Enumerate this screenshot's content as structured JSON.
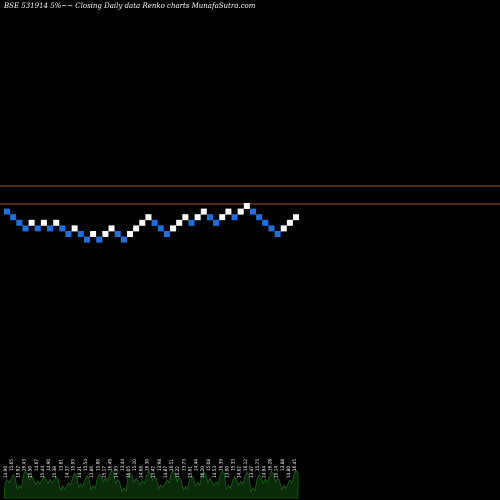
{
  "chart_data": {
    "type": "renko",
    "title": "BSE 531914  5%~~  Closing Daily data  Renko  charts MunafaSutra.com",
    "colors": {
      "background": "#000000",
      "up_brick": "#ffffff",
      "down_brick": "#1e6fe0",
      "reference_lines": "#a0522d",
      "volume_fill": "#0a2a0a",
      "volume_stroke": "#1a7a1a"
    },
    "brick_direction_sequence": [
      "down",
      "down",
      "down",
      "down",
      "up",
      "down",
      "up",
      "down",
      "up",
      "down",
      "down",
      "up",
      "down",
      "down",
      "up",
      "down",
      "up",
      "up",
      "down",
      "down",
      "up",
      "up",
      "up",
      "up",
      "down",
      "down",
      "down",
      "up",
      "up",
      "up",
      "down",
      "up",
      "up",
      "down",
      "down",
      "up",
      "up",
      "down",
      "up",
      "up",
      "down",
      "down",
      "down",
      "down",
      "down",
      "up",
      "up",
      "up"
    ],
    "reference_lines": [
      {
        "name": "upper",
        "value_rank": "high"
      },
      {
        "name": "lower",
        "value_rank": "low"
      }
    ],
    "volume_labels": [
      "14.90",
      "15.65",
      "13.92",
      "16.43",
      "15.50",
      "14.67",
      "15.44",
      "14.90",
      "15.38",
      "13.81",
      "14.37",
      "15.93",
      "14.21",
      "15.54",
      "13.86",
      "15.80",
      "15.17",
      "16.49",
      "14.93",
      "13.44",
      "16.05",
      "15.10",
      "14.68",
      "16.30",
      "15.42",
      "13.98",
      "14.87",
      "16.51",
      "15.22",
      "13.73",
      "15.61",
      "14.44",
      "16.20",
      "15.08",
      "14.53",
      "16.39",
      "13.90",
      "15.33",
      "14.62",
      "16.12",
      "13.47",
      "15.75",
      "14.94",
      "16.28",
      "15.14",
      "13.88",
      "14.80",
      "16.45"
    ],
    "volume_values": [
      14.9,
      15.65,
      13.92,
      16.43,
      15.5,
      14.67,
      15.44,
      14.9,
      15.38,
      13.81,
      14.37,
      15.93,
      14.21,
      15.54,
      13.86,
      15.8,
      15.17,
      16.49,
      14.93,
      13.44,
      16.05,
      15.1,
      14.68,
      16.3,
      15.42,
      13.98,
      14.87,
      16.51,
      15.22,
      13.73,
      15.61,
      14.44,
      16.2,
      15.08,
      14.53,
      16.39,
      13.9,
      15.33,
      14.62,
      16.12,
      13.47,
      15.75,
      14.94,
      16.28,
      15.14,
      13.88,
      14.8,
      16.45
    ],
    "grid": false
  }
}
